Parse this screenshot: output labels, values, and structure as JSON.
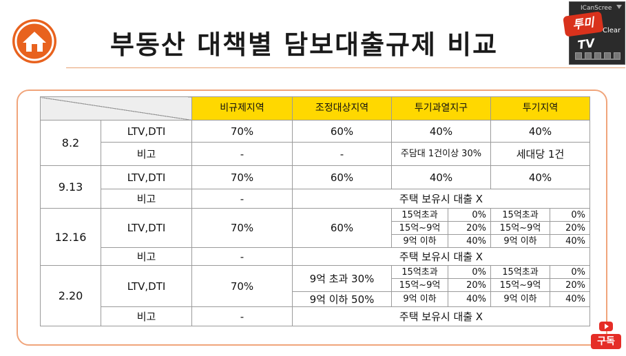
{
  "title": "부동산 대책별 담보대출규제 비교",
  "icons": {
    "logo": "home-icon",
    "subscribe": "youtube-play-icon"
  },
  "colors": {
    "header_fill": "#ffd800",
    "logo": "#e8621e",
    "frame": "#f0a47a",
    "subscribe": "#e52d27"
  },
  "capture_widget": {
    "title": "ICanScree",
    "badge": "투미TV",
    "clear": "Clear"
  },
  "subscribe_label": "구독",
  "table": {
    "headers": [
      "비규제지역",
      "조정대상지역",
      "투기과열지구",
      "투기지역"
    ],
    "rows": {
      "r82": {
        "period": "8.2",
        "ltv_label": "LTV,DTI",
        "ltv": [
          "70%",
          "60%",
          "40%",
          "40%"
        ],
        "note_label": "비고",
        "note": [
          "-",
          "-",
          "주담대 1건이상 30%",
          "세대당 1건"
        ]
      },
      "r913": {
        "period": "9.13",
        "ltv_label": "LTV,DTI",
        "ltv": [
          "70%",
          "60%",
          "40%",
          "40%"
        ],
        "note_label": "비고",
        "note_nonreg": "-",
        "note_rest": "주택 보유시 대출 X"
      },
      "r1216": {
        "period": "12.16",
        "ltv_label": "LTV,DTI",
        "nonreg": "70%",
        "adjust": "60%",
        "grid": [
          [
            "15억초과",
            "0%",
            "15억초과",
            "0%"
          ],
          [
            "15억~9억",
            "20%",
            "15억~9억",
            "20%"
          ],
          [
            "9억 이하",
            "40%",
            "9억 이하",
            "40%"
          ]
        ],
        "note_label": "비고",
        "note_nonreg": "-",
        "note_rest": "주택 보유시 대출 X"
      },
      "r220": {
        "period": "2.20",
        "ltv_label": "LTV,DTI",
        "nonreg": "70%",
        "adjust": [
          "9억 초과 30%",
          "9억 이하 50%"
        ],
        "grid": [
          [
            "15억초과",
            "0%",
            "15억초과",
            "0%"
          ],
          [
            "15억~9억",
            "20%",
            "15억~9억",
            "20%"
          ],
          [
            "9억 이하",
            "40%",
            "9억 이하",
            "40%"
          ]
        ],
        "note_label": "비고",
        "note_nonreg": "-",
        "note_rest": "주택 보유시 대출 X"
      }
    }
  }
}
